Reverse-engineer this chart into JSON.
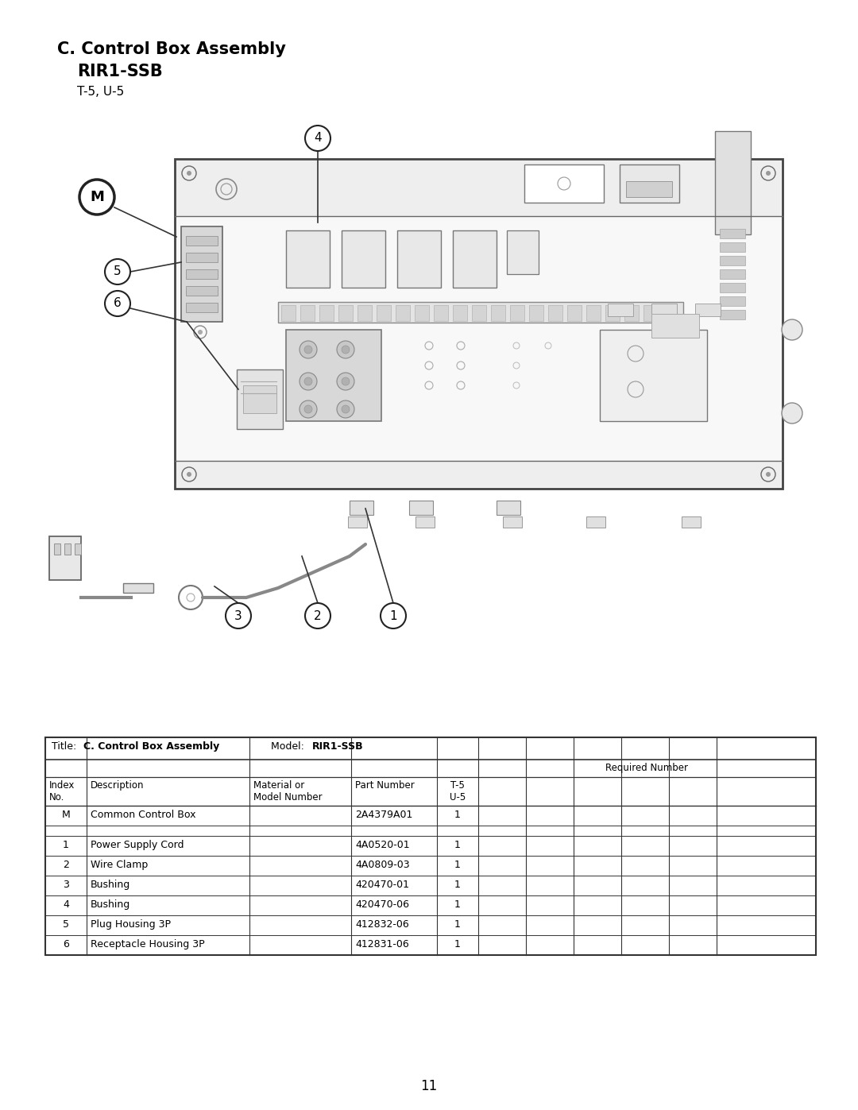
{
  "title_line1": "C. Control Box Assembly",
  "title_line2": "RIR1-SSB",
  "title_line3": "T-5, U-5",
  "page_number": "11",
  "table_title_plain": "Title: ",
  "table_title_bold1": "C. Control Box Assembly",
  "table_title_sep": "    Model: ",
  "table_title_bold2": "RIR1-SSB",
  "table_req_header": "Required Number",
  "col_headers": [
    "Index\nNo.",
    "Description",
    "Material or\nModel Number",
    "Part Number",
    "T-5\nU-5"
  ],
  "table_rows": [
    [
      "M",
      "Common Control Box",
      "",
      "2A4379A01",
      "1"
    ],
    [
      "",
      "",
      "",
      "",
      ""
    ],
    [
      "1",
      "Power Supply Cord",
      "",
      "4A0520-01",
      "1"
    ],
    [
      "2",
      "Wire Clamp",
      "",
      "4A0809-03",
      "1"
    ],
    [
      "3",
      "Bushing",
      "",
      "420470-01",
      "1"
    ],
    [
      "4",
      "Bushing",
      "",
      "420470-06",
      "1"
    ],
    [
      "5",
      "Plug Housing 3P",
      "",
      "412832-06",
      "1"
    ],
    [
      "6",
      "Receptacle Housing 3P",
      "",
      "412831-06",
      "1"
    ]
  ],
  "bg_color": "#ffffff",
  "text_color": "#000000",
  "box_edge_color": "#555555",
  "light_gray": "#f0f0f0",
  "med_gray": "#e0e0e0",
  "dark_gray": "#888888"
}
